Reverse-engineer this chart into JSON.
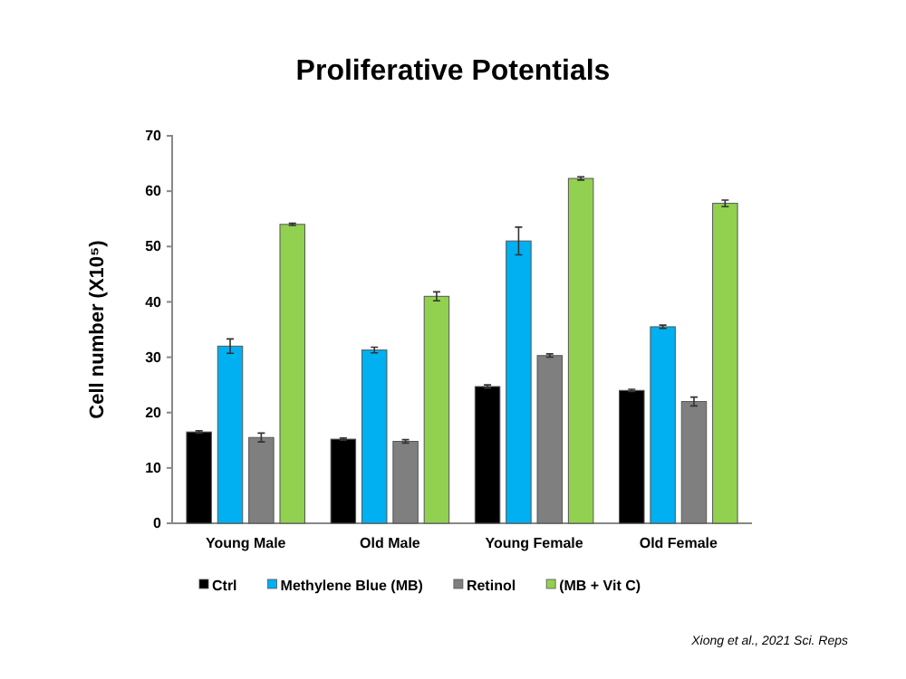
{
  "chart_data": {
    "type": "bar",
    "title": "Proliferative Potentials",
    "ylabel": "Cell number (X10⁵)",
    "categories": [
      "Young Male",
      "Old Male",
      "Young Female",
      "Old Female"
    ],
    "series": [
      {
        "name": "Ctrl",
        "color": "#000000",
        "values": [
          16.5,
          15.2,
          24.7,
          24
        ],
        "errors": [
          0.2,
          0.2,
          0.3,
          0.2
        ]
      },
      {
        "name": "Methylene Blue (MB)",
        "color": "#00b0f0",
        "values": [
          32,
          31.3,
          51,
          35.5
        ],
        "errors": [
          1.3,
          0.5,
          2.5,
          0.3
        ]
      },
      {
        "name": "Retinol",
        "color": "#7f7f7f",
        "values": [
          15.5,
          14.8,
          30.3,
          22
        ],
        "errors": [
          0.8,
          0.3,
          0.3,
          0.8
        ]
      },
      {
        "name": "(MB + Vit C)",
        "color": "#92d050",
        "values": [
          54,
          41,
          62.3,
          57.8
        ],
        "errors": [
          0.2,
          0.8,
          0.3,
          0.6
        ]
      }
    ],
    "ylim": [
      0,
      70
    ],
    "yticks": [
      0,
      10,
      20,
      30,
      40,
      50,
      60,
      70
    ],
    "legend": "bottom",
    "grid": false,
    "annotations": [
      "Xiong et al., 2021 Sci. Reps"
    ]
  }
}
